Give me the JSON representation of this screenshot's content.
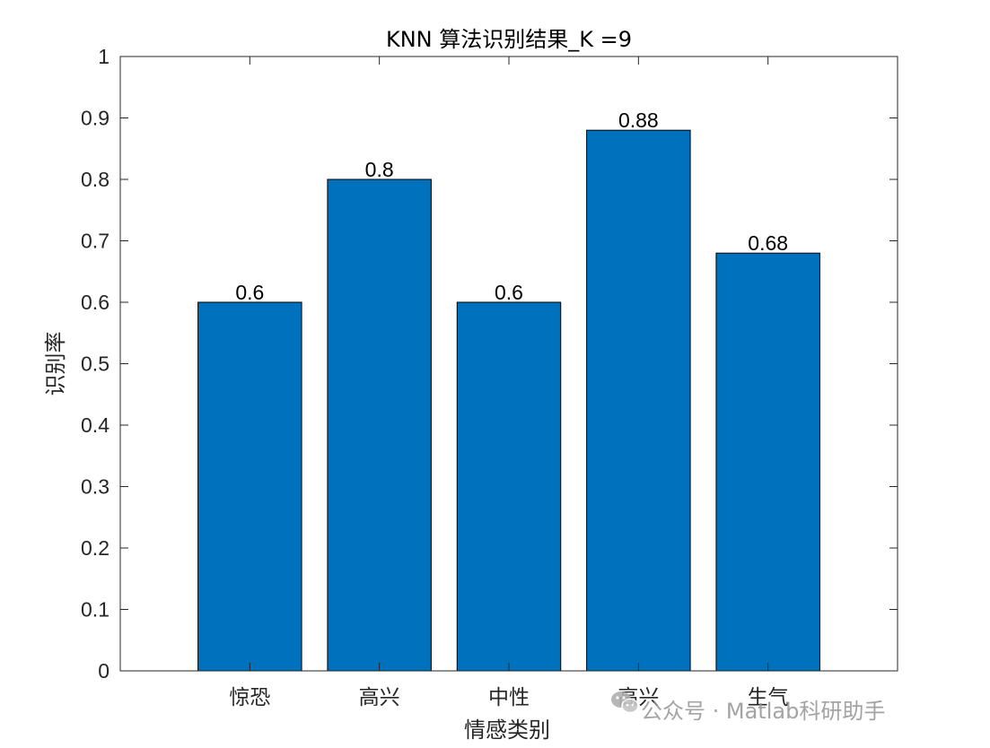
{
  "chart_data": {
    "type": "bar",
    "title": "KNN 算法识别结果_K =9",
    "xlabel": "情感类别",
    "ylabel": "识别率",
    "categories": [
      "惊恐",
      "高兴",
      "中性",
      "高兴",
      "生气"
    ],
    "values": [
      0.6,
      0.8,
      0.6,
      0.88,
      0.68
    ],
    "data_labels": [
      "0.6",
      "0.8",
      "0.6",
      "0.88",
      "0.68"
    ],
    "ylim": [
      0,
      1
    ],
    "xlim": [
      0,
      6
    ],
    "yticks": [
      0,
      0.1,
      0.2,
      0.3,
      0.4,
      0.5,
      0.6,
      0.7,
      0.8,
      0.9,
      1
    ],
    "ytick_labels": [
      "0",
      "0.1",
      "0.2",
      "0.3",
      "0.4",
      "0.5",
      "0.6",
      "0.7",
      "0.8",
      "0.9",
      "1"
    ],
    "bar_color": "#0072BD",
    "grid": false
  },
  "watermark": {
    "text": "公众号 · Matlab科研助手",
    "icon": "wechat-icon"
  }
}
